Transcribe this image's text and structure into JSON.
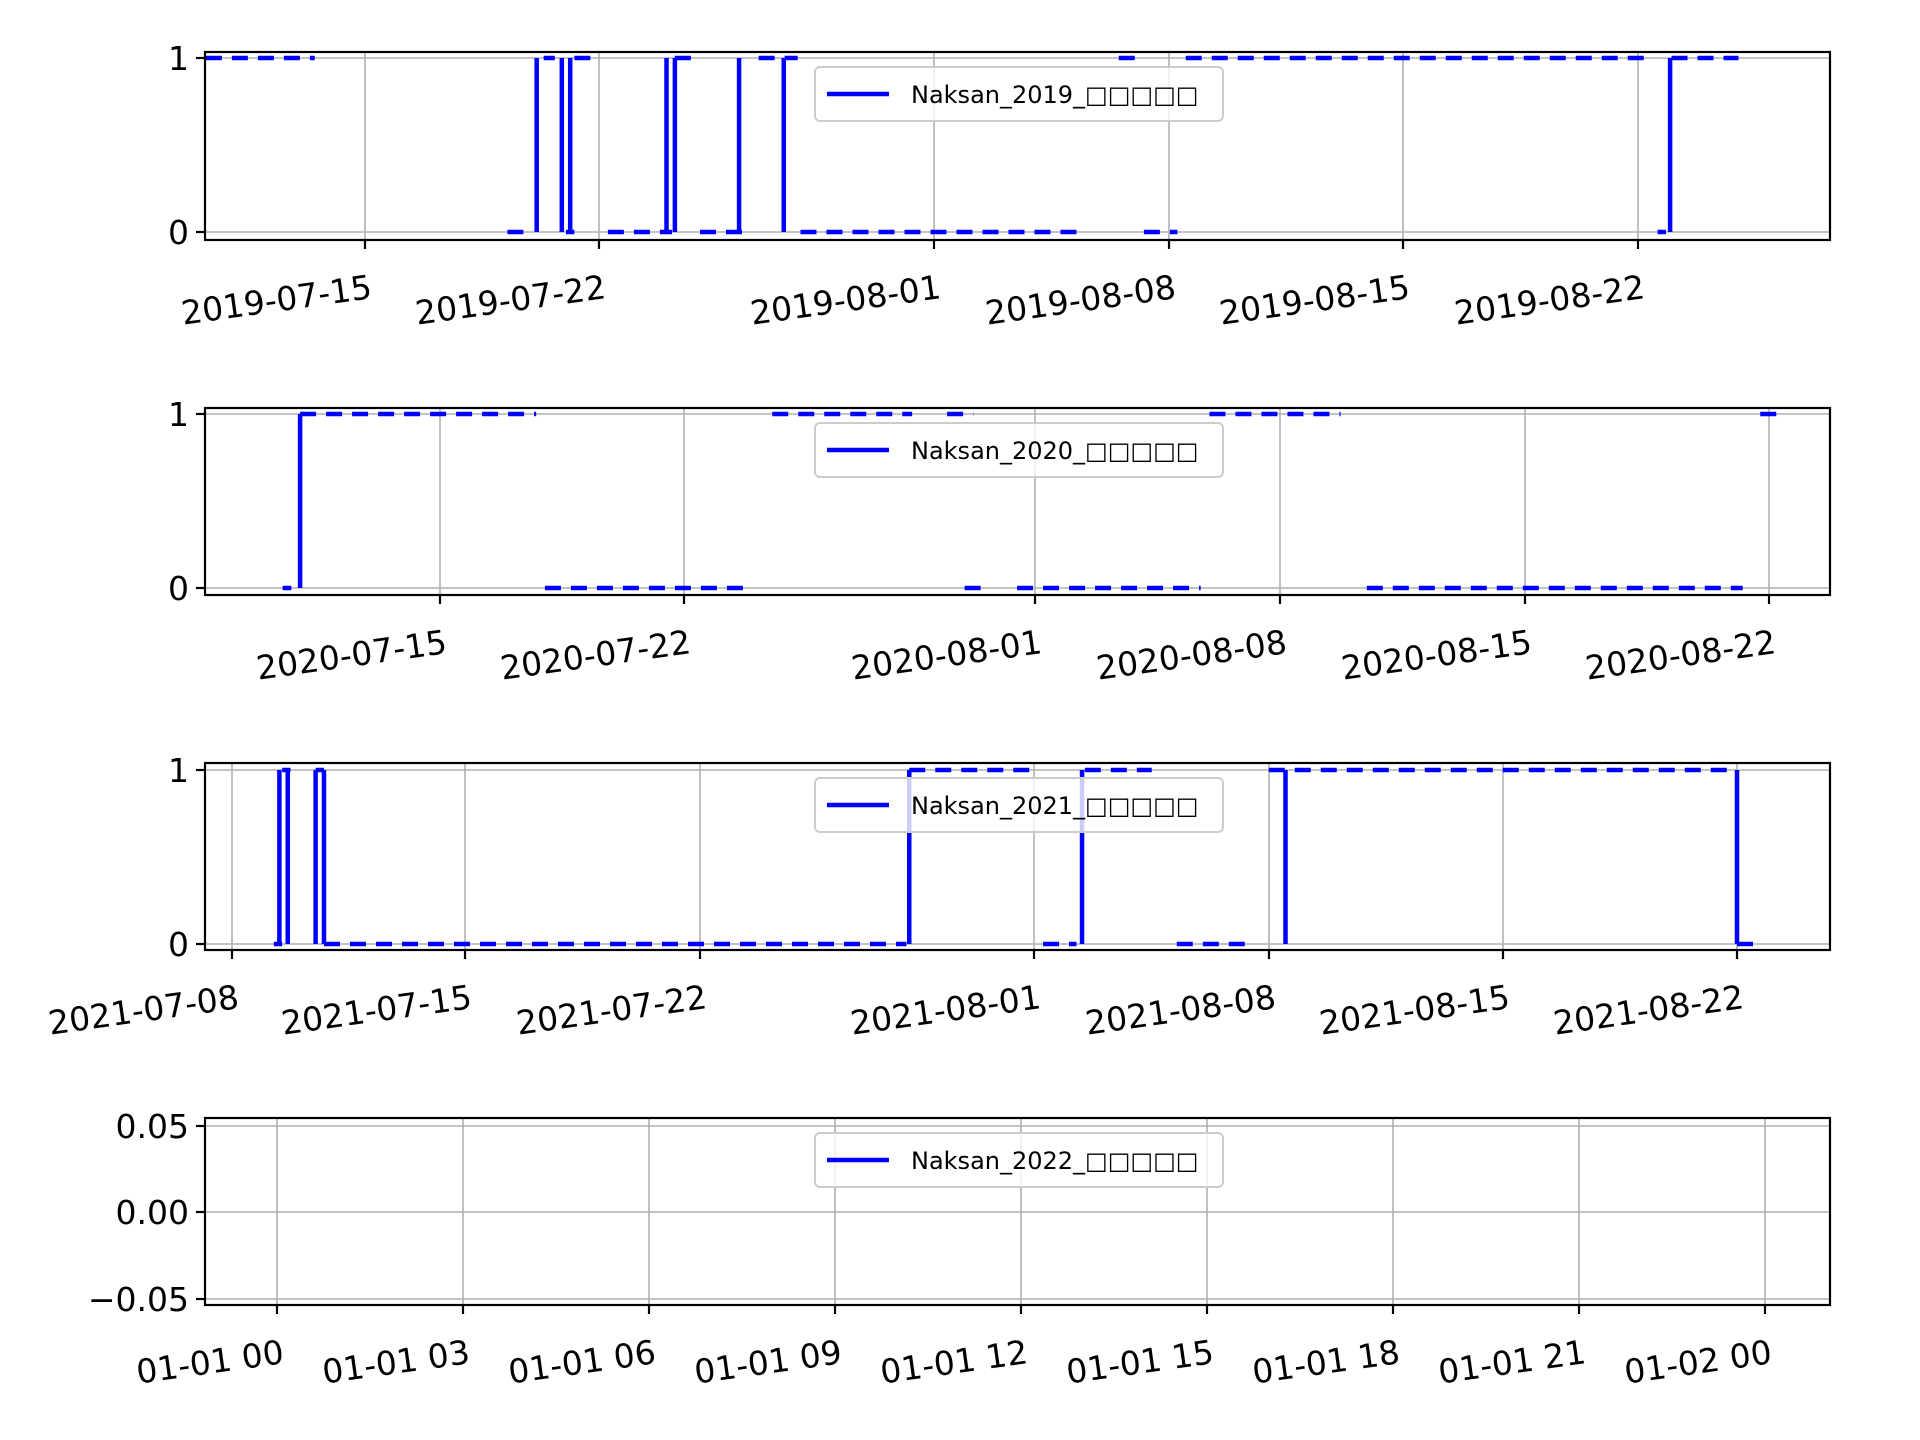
{
  "chart_data": [
    {
      "type": "line",
      "legend": "Naksan_2019_□□□□□",
      "legend_placement": "upper center",
      "grid": true,
      "series_color": "#0000ff",
      "x_range": [
        "2019-07-08T12:00",
        "2019-08-28T12:00"
      ],
      "x_ticks": [
        "2019-07-15",
        "2019-07-22",
        "2019-08-01",
        "2019-08-08",
        "2019-08-15",
        "2019-08-22"
      ],
      "y_ticks": [
        "0",
        "1"
      ],
      "y_range": [
        -0.05,
        1.05
      ],
      "dashed_segments": [
        {
          "y": 1,
          "from": "2019-07-10T06:00",
          "to": "2019-07-13T12:00"
        },
        {
          "y": 0,
          "from": "2019-07-19T06:00",
          "to": "2019-07-19T23:00"
        },
        {
          "y": 1,
          "from": "2019-07-20T08:00",
          "to": "2019-07-20T16:00"
        },
        {
          "y": 0,
          "from": "2019-07-21T00:00",
          "to": "2019-07-21T06:00"
        },
        {
          "y": 1,
          "from": "2019-07-21T06:00",
          "to": "2019-07-21T18:00"
        },
        {
          "y": 0,
          "from": "2019-07-22T06:00",
          "to": "2019-07-24T04:00"
        },
        {
          "y": 1,
          "from": "2019-07-24T06:00",
          "to": "2019-07-24T22:00"
        },
        {
          "y": 0,
          "from": "2019-07-25T00:00",
          "to": "2019-07-26T12:00"
        },
        {
          "y": 1,
          "from": "2019-07-26T18:00",
          "to": "2019-07-27T22:00"
        },
        {
          "y": 0,
          "from": "2019-07-28T00:00",
          "to": "2019-08-05T10:00"
        },
        {
          "y": 1,
          "from": "2019-08-06T12:00",
          "to": "2019-08-07T02:00"
        },
        {
          "y": 0,
          "from": "2019-08-07T06:00",
          "to": "2019-08-08T06:00"
        },
        {
          "y": 1,
          "from": "2019-08-08T12:00",
          "to": "2019-08-22T06:00"
        },
        {
          "y": 0,
          "from": "2019-08-22T14:00",
          "to": "2019-08-22T20:00"
        },
        {
          "y": 1,
          "from": "2019-08-23T00:00",
          "to": "2019-08-25T00:00"
        }
      ],
      "transitions": [
        "2019-07-20T03:00",
        "2019-07-20T21:00",
        "2019-07-21T03:00",
        "2019-07-24T00:00",
        "2019-07-24T06:00",
        "2019-07-26T04:00",
        "2019-07-27T12:00",
        "2019-08-22T23:00"
      ]
    },
    {
      "type": "line",
      "legend": "Naksan_2020_□□□□□",
      "legend_placement": "upper center",
      "grid": true,
      "series_color": "#0000ff",
      "x_range": [
        "2020-07-08T12:00",
        "2020-08-23T12:00"
      ],
      "x_ticks": [
        "2020-07-15",
        "2020-07-22",
        "2020-08-01",
        "2020-08-08",
        "2020-08-15",
        "2020-08-22"
      ],
      "y_ticks": [
        "0",
        "1"
      ],
      "y_range": [
        -0.05,
        1.05
      ],
      "dashed_segments": [
        {
          "y": 0,
          "from": "2020-07-10T12:00",
          "to": "2020-07-10T18:00"
        },
        {
          "y": 1,
          "from": "2020-07-11T00:00",
          "to": "2020-07-17T18:00"
        },
        {
          "y": 0,
          "from": "2020-07-18T00:00",
          "to": "2020-07-23T22:00"
        },
        {
          "y": 1,
          "from": "2020-07-24T12:00",
          "to": "2020-07-28T12:00"
        },
        {
          "y": 1,
          "from": "2020-07-29T12:00",
          "to": "2020-07-30T06:00"
        },
        {
          "y": 0,
          "from": "2020-07-30T00:00",
          "to": "2020-07-30T12:00"
        },
        {
          "y": 0,
          "from": "2020-07-31T12:00",
          "to": "2020-08-05T18:00"
        },
        {
          "y": 1,
          "from": "2020-08-06T00:00",
          "to": "2020-08-09T18:00"
        },
        {
          "y": 0,
          "from": "2020-08-10T12:00",
          "to": "2020-08-21T06:00"
        },
        {
          "y": 1,
          "from": "2020-08-21T18:00",
          "to": "2020-08-22T06:00"
        }
      ],
      "transitions": [
        "2020-07-11T00:00"
      ]
    },
    {
      "type": "line",
      "legend": "Naksan_2021_□□□□□",
      "legend_placement": "upper center",
      "grid": true,
      "series_color": "#0000ff",
      "x_range": [
        "2021-07-07T04:00",
        "2021-08-22T18:00"
      ],
      "x_ticks": [
        "2021-07-08",
        "2021-07-15",
        "2021-07-22",
        "2021-08-01",
        "2021-08-08",
        "2021-08-15",
        "2021-08-22"
      ],
      "y_ticks": [
        "0",
        "1"
      ],
      "y_range": [
        -0.05,
        1.05
      ],
      "dashed_segments": [
        {
          "y": 0,
          "from": "2021-07-09T06:00",
          "to": "2021-07-09T12:00"
        },
        {
          "y": 1,
          "from": "2021-07-09T12:00",
          "to": "2021-07-09T18:00"
        },
        {
          "y": 1,
          "from": "2021-07-10T12:00",
          "to": "2021-07-10T18:00"
        },
        {
          "y": 0,
          "from": "2021-07-10T18:00",
          "to": "2021-07-28T04:00"
        },
        {
          "y": 1,
          "from": "2021-07-28T06:00",
          "to": "2021-08-01T00:00"
        },
        {
          "y": 0,
          "from": "2021-08-01T06:00",
          "to": "2021-08-02T06:00"
        },
        {
          "y": 1,
          "from": "2021-08-02T12:00",
          "to": "2021-08-04T12:00"
        },
        {
          "y": 0,
          "from": "2021-08-05T06:00",
          "to": "2021-08-07T12:00"
        },
        {
          "y": 1,
          "from": "2021-08-08T00:00",
          "to": "2021-08-21T18:00"
        },
        {
          "y": 0,
          "from": "2021-08-22T00:00",
          "to": "2021-08-22T12:00"
        }
      ],
      "transitions": [
        "2021-07-09T10:00",
        "2021-07-09T16:00",
        "2021-07-10T12:00",
        "2021-07-10T18:00",
        "2021-07-28T06:00",
        "2021-08-02T10:00",
        "2021-08-08T12:00",
        "2021-08-22T00:00"
      ]
    },
    {
      "type": "line",
      "legend": "Naksan_2022_□□□□□",
      "legend_placement": "upper center",
      "grid": true,
      "series_color": "#0000ff",
      "x_ticks": [
        "01-01 00",
        "01-01 03",
        "01-01 06",
        "01-01 09",
        "01-01 12",
        "01-01 15",
        "01-01 18",
        "01-01 21",
        "01-02 00"
      ],
      "y_ticks": [
        "0.05",
        "0.00",
        "−0.05"
      ],
      "y_range": [
        -0.055,
        0.055
      ],
      "dashed_segments": [],
      "transitions": []
    }
  ]
}
